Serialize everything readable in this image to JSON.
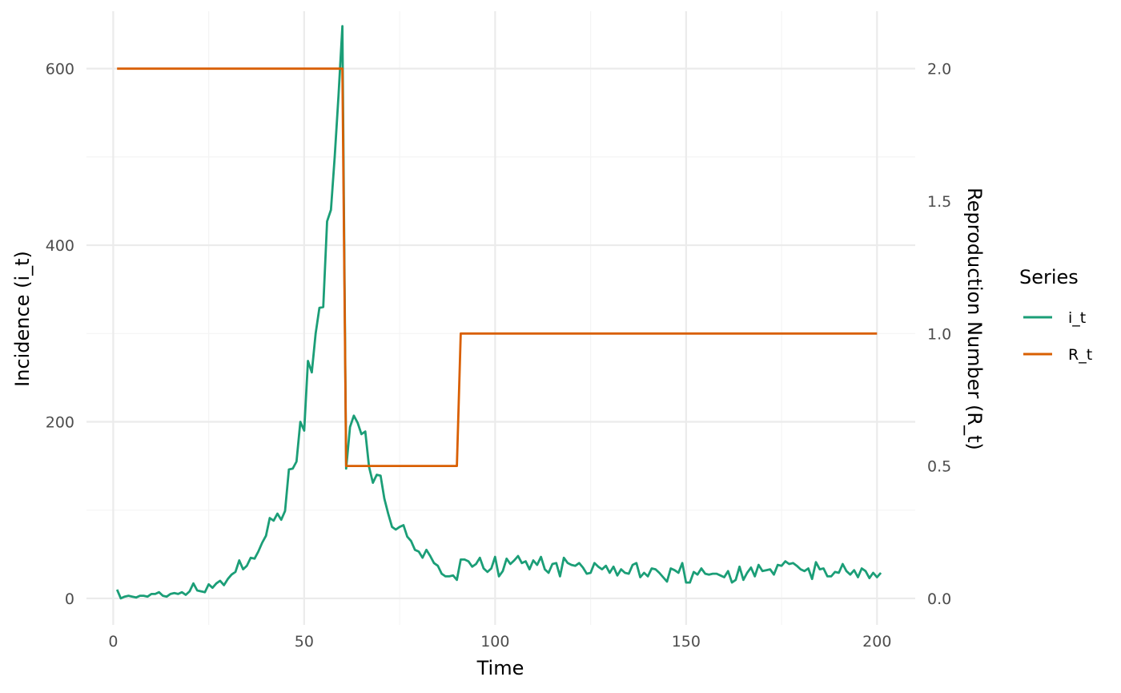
{
  "chart_data": {
    "type": "line",
    "xlabel": "Time",
    "ylabel_left": "Incidence (i_t)",
    "ylabel_right": "Reproduction Number (R_t)",
    "xlim": [
      -7,
      210
    ],
    "ylim_left": [
      -30,
      665
    ],
    "ylim_right": [
      -0.1,
      2.2167
    ],
    "x_ticks": [
      0,
      50,
      100,
      150,
      200
    ],
    "y_left_ticks": [
      0,
      200,
      400,
      600
    ],
    "y_right_ticks": [
      0.0,
      0.5,
      1.0,
      1.5,
      2.0
    ],
    "x_tick_labels": [
      "0",
      "50",
      "100",
      "150",
      "200"
    ],
    "y_left_tick_labels": [
      "0",
      "200",
      "400",
      "600"
    ],
    "y_right_tick_labels": [
      "0.0",
      "0.5",
      "1.0",
      "1.5",
      "2.0"
    ],
    "grid": true,
    "legend": {
      "title": "Series",
      "position": "right"
    },
    "series": [
      {
        "name": "i_t",
        "color": "#1b9e77",
        "axis": "left",
        "x_start": 1,
        "values": [
          10,
          0,
          2,
          3,
          2,
          1,
          3,
          3,
          2,
          5,
          5,
          7,
          3,
          2,
          5,
          6,
          5,
          7,
          4,
          8,
          17,
          9,
          8,
          7,
          16,
          12,
          17,
          20,
          15,
          22,
          27,
          30,
          43,
          33,
          37,
          46,
          45,
          53,
          63,
          71,
          91,
          88,
          96,
          89,
          99,
          146,
          147,
          155,
          200,
          190,
          269,
          256,
          300,
          329,
          330,
          427,
          440,
          500,
          570,
          648,
          147,
          194,
          207,
          199,
          186,
          189,
          149,
          131,
          140,
          139,
          113,
          96,
          81,
          78,
          81,
          83,
          70,
          65,
          55,
          53,
          46,
          55,
          48,
          40,
          37,
          28,
          25,
          25,
          26,
          21,
          44,
          44,
          42,
          36,
          39,
          46,
          34,
          30,
          34,
          47,
          25,
          31,
          45,
          39,
          43,
          48,
          40,
          42,
          33,
          43,
          38,
          47,
          33,
          29,
          39,
          40,
          25,
          46,
          40,
          38,
          37,
          40,
          35,
          28,
          29,
          40,
          36,
          33,
          37,
          29,
          36,
          26,
          33,
          29,
          28,
          38,
          40,
          24,
          29,
          25,
          34,
          33,
          29,
          24,
          19,
          34,
          32,
          29,
          40,
          18,
          18,
          30,
          27,
          34,
          28,
          27,
          28,
          28,
          26,
          24,
          31,
          18,
          21,
          36,
          21,
          29,
          35,
          25,
          38,
          31,
          32,
          33,
          27,
          38,
          37,
          42,
          39,
          40,
          37,
          33,
          31,
          34,
          22,
          41,
          33,
          34,
          25,
          25,
          30,
          29,
          39,
          31,
          27,
          32,
          24,
          34,
          31,
          23,
          29,
          24,
          29
        ]
      },
      {
        "name": "R_t",
        "color": "#d95f02",
        "axis": "right",
        "segments": [
          {
            "x_from": 1,
            "x_to": 60,
            "value": 2.0
          },
          {
            "x_from": 61,
            "x_to": 90,
            "value": 0.5
          },
          {
            "x_from": 91,
            "x_to": 200,
            "value": 1.0
          }
        ]
      }
    ]
  }
}
